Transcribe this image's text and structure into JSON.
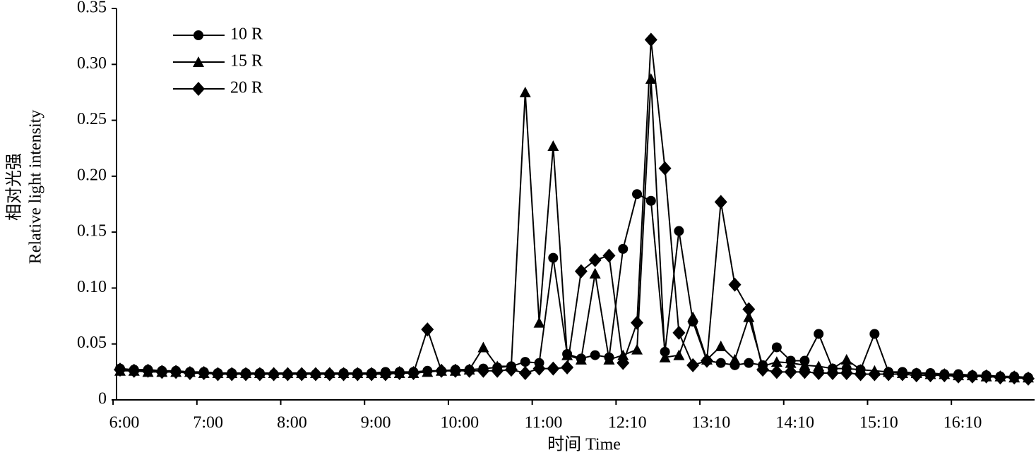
{
  "chart_data": {
    "type": "line",
    "x_label": "时间 Time",
    "y_label": [
      "相对光强",
      "Relative light intensity"
    ],
    "categories": [
      "6:00",
      null,
      null,
      null,
      null,
      null,
      "7:00",
      null,
      null,
      null,
      null,
      null,
      "8:00",
      null,
      null,
      null,
      null,
      null,
      "9:00",
      null,
      null,
      null,
      null,
      null,
      "10:00",
      null,
      null,
      null,
      null,
      null,
      "11:00",
      null,
      null,
      null,
      null,
      null,
      "12:10",
      null,
      null,
      null,
      null,
      null,
      "13:10",
      null,
      null,
      null,
      null,
      null,
      "14:10",
      null,
      null,
      null,
      null,
      null,
      "15:10",
      null,
      null,
      null,
      null,
      null,
      "16:10",
      null,
      null,
      null,
      null,
      null
    ],
    "series": [
      {
        "name": "10 R",
        "color": "#000000",
        "marker": "circle",
        "values": [
          0.028,
          0.027,
          0.027,
          0.026,
          0.026,
          0.025,
          0.025,
          0.024,
          0.024,
          0.024,
          0.024,
          0.023,
          0.023,
          0.023,
          0.023,
          0.023,
          0.024,
          0.024,
          0.024,
          0.025,
          0.025,
          0.025,
          0.026,
          0.026,
          0.027,
          0.027,
          0.028,
          0.029,
          0.03,
          0.034,
          0.033,
          0.127,
          0.041,
          0.037,
          0.04,
          0.038,
          0.135,
          0.184,
          0.178,
          0.043,
          0.151,
          0.07,
          0.035,
          0.033,
          0.031,
          0.033,
          0.031,
          0.047,
          0.035,
          0.035,
          0.059,
          0.028,
          0.028,
          0.027,
          0.059,
          0.025,
          0.025,
          0.024,
          0.024,
          0.023,
          0.023,
          0.022,
          0.022,
          0.021,
          0.021,
          0.02
        ]
      },
      {
        "name": "15 R",
        "color": "#000000",
        "marker": "triangle",
        "values": [
          0.026,
          0.026,
          0.025,
          0.025,
          0.025,
          0.025,
          0.024,
          0.024,
          0.024,
          0.024,
          0.024,
          0.024,
          0.024,
          0.024,
          0.024,
          0.024,
          0.024,
          0.024,
          0.024,
          0.024,
          0.024,
          0.024,
          0.025,
          0.026,
          0.026,
          0.027,
          0.047,
          0.03,
          0.03,
          0.275,
          0.069,
          0.227,
          0.04,
          0.036,
          0.113,
          0.036,
          0.04,
          0.045,
          0.287,
          0.038,
          0.04,
          0.074,
          0.036,
          0.048,
          0.036,
          0.074,
          0.03,
          0.034,
          0.033,
          0.031,
          0.03,
          0.028,
          0.036,
          0.027,
          0.026,
          0.025,
          0.024,
          0.024,
          0.023,
          0.023,
          0.022,
          0.022,
          0.021,
          0.021,
          0.02,
          0.02
        ]
      },
      {
        "name": "20 R",
        "color": "#000000",
        "marker": "diamond",
        "values": [
          0.027,
          0.026,
          0.026,
          0.025,
          0.025,
          0.024,
          0.024,
          0.023,
          0.023,
          0.023,
          0.023,
          0.023,
          0.023,
          0.023,
          0.023,
          0.023,
          0.023,
          0.023,
          0.023,
          0.023,
          0.024,
          0.024,
          0.063,
          0.026,
          0.026,
          0.026,
          0.026,
          0.026,
          0.027,
          0.024,
          0.028,
          0.028,
          0.029,
          0.115,
          0.125,
          0.129,
          0.033,
          0.069,
          0.322,
          0.207,
          0.06,
          0.031,
          0.035,
          0.177,
          0.103,
          0.081,
          0.027,
          0.025,
          0.025,
          0.025,
          0.024,
          0.024,
          0.024,
          0.023,
          0.023,
          0.023,
          0.023,
          0.022,
          0.022,
          0.022,
          0.021,
          0.021,
          0.021,
          0.02,
          0.02,
          0.019
        ]
      }
    ],
    "ylim": [
      0,
      0.35
    ],
    "yticks": [
      0,
      0.05,
      {
        "value": 0.1,
        "label": "0.10"
      },
      0.15,
      {
        "value": 0.2,
        "label": "0.20"
      },
      0.25,
      {
        "value": 0.3,
        "label": "0.30"
      },
      0.35
    ],
    "legend": "upper left"
  }
}
